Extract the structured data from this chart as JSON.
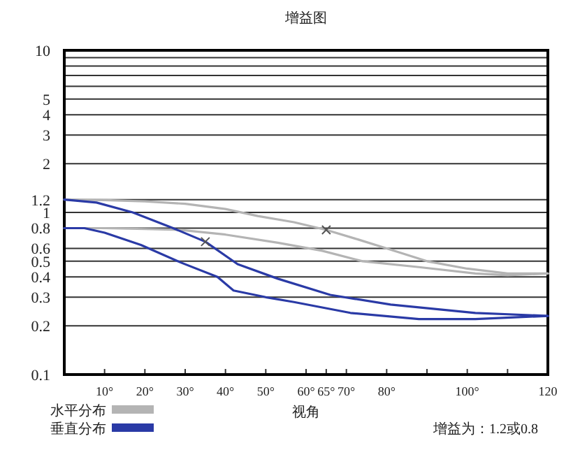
{
  "chart_data": {
    "type": "line",
    "title": "增益图",
    "xlabel": "视角",
    "xlim": [
      0,
      120
    ],
    "xticks": [
      {
        "value": 10,
        "label": "10°"
      },
      {
        "value": 20,
        "label": "20°"
      },
      {
        "value": 30,
        "label": "30°"
      },
      {
        "value": 40,
        "label": "40°"
      },
      {
        "value": 50,
        "label": "50°"
      },
      {
        "value": 60,
        "label": "60°"
      },
      {
        "value": 65,
        "label": "65°"
      },
      {
        "value": 70,
        "label": "70°"
      },
      {
        "value": 80,
        "label": "80°"
      },
      {
        "value": 90,
        "label": null
      },
      {
        "value": 100,
        "label": "100°"
      },
      {
        "value": 110,
        "label": null
      },
      120
    ],
    "ylim": [
      0.1,
      10
    ],
    "log": "y",
    "yticks": [
      0.1,
      0.2,
      0.3,
      0.4,
      0.5,
      0.6,
      0.8,
      1,
      1.2,
      2,
      3,
      4,
      5,
      {
        "value": 6,
        "label": null
      },
      {
        "value": 7,
        "label": null
      },
      {
        "value": 8,
        "label": null
      },
      {
        "value": 9,
        "label": null
      },
      10
    ],
    "grid": "y",
    "legend": "bottom left",
    "line_style": "solid",
    "series": [
      {
        "name": "水平分布",
        "color": "#b4b4b4",
        "x": [
          0,
          10,
          20,
          30,
          40,
          48,
          57,
          65,
          73,
          80,
          90,
          100,
          110,
          120
        ],
        "values": [
          1.2,
          1.19,
          1.17,
          1.13,
          1.05,
          0.95,
          0.87,
          0.78,
          0.68,
          0.6,
          0.5,
          0.45,
          0.42,
          0.42
        ]
      },
      {
        "color": "#b4b4b4",
        "x": [
          0,
          10,
          20,
          29,
          40,
          53,
          64,
          74,
          88,
          102,
          110,
          120
        ],
        "values": [
          0.8,
          0.8,
          0.79,
          0.78,
          0.73,
          0.65,
          0.58,
          0.5,
          0.46,
          0.42,
          0.41,
          0.42
        ]
      },
      {
        "name": "垂直分布",
        "color": "#2a3aa6",
        "x": [
          0,
          8,
          17,
          27,
          35,
          43,
          53,
          66,
          81,
          102,
          120
        ],
        "values": [
          1.2,
          1.15,
          1.0,
          0.8,
          0.66,
          0.48,
          0.39,
          0.31,
          0.27,
          0.24,
          0.23
        ]
      },
      {
        "color": "#2a3aa6",
        "x": [
          0,
          5,
          10,
          19,
          29,
          38,
          42,
          50,
          57,
          71,
          88,
          102,
          120
        ],
        "values": [
          0.8,
          0.8,
          0.75,
          0.63,
          0.49,
          0.4,
          0.33,
          0.3,
          0.28,
          0.24,
          0.22,
          0.22,
          0.23
        ]
      },
      {
        "type": "scatter",
        "marker": "cross",
        "color": "#555555",
        "x": [
          35,
          65
        ],
        "values": [
          0.66,
          0.78
        ]
      }
    ],
    "annotations": [
      "增益为：1.2或0.8"
    ]
  }
}
